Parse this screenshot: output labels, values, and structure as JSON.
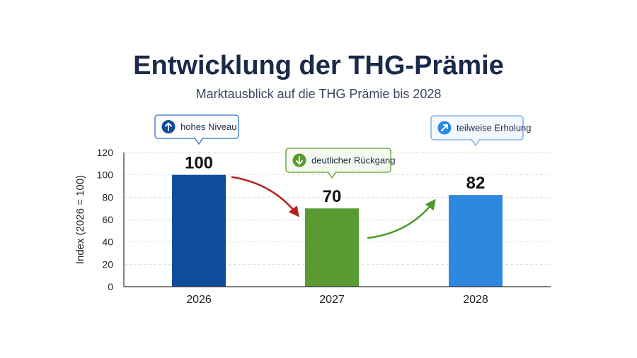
{
  "colors": {
    "bar_2026": "#0f4c9e",
    "bar_2027": "#5a9a32",
    "bar_2028": "#2f88e0",
    "decline_arrow": "#b5201c",
    "recovery_arrow": "#4c9a2a"
  },
  "chart_data": {
    "type": "bar",
    "title": "Entwicklung der THG-Prämie",
    "subtitle": "Marktausblick auf die THG Prämie bis 2028",
    "ylabel": "Index (2026 = 100)",
    "xlabel": "",
    "ylim": [
      0,
      120
    ],
    "yticks": [
      0,
      20,
      40,
      60,
      80,
      100,
      120
    ],
    "grid": true,
    "categories": [
      "2026",
      "2027",
      "2028"
    ],
    "values": [
      100,
      70,
      82
    ],
    "data_labels": [
      "100",
      "70",
      "82"
    ],
    "annotations": [
      {
        "category": "2026",
        "text": "hohes Niveau",
        "icon": "arrow-up-icon"
      },
      {
        "category": "2027",
        "text": "deutlicher Rückgang",
        "icon": "arrow-down-icon"
      },
      {
        "category": "2028",
        "text": "teilweise Erholung",
        "icon": "arrow-up-right-icon"
      }
    ]
  }
}
